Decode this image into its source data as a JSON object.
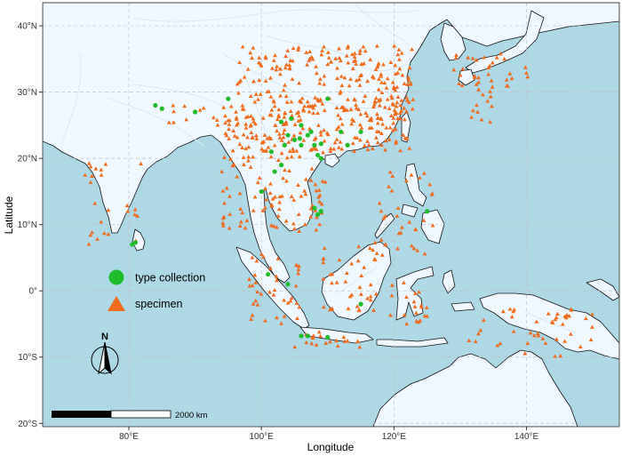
{
  "map": {
    "x_axis": {
      "title": "Longitude",
      "range": [
        67,
        154
      ],
      "ticks": [
        {
          "value": 80,
          "label": "80°E"
        },
        {
          "value": 100,
          "label": "100°E"
        },
        {
          "value": 120,
          "label": "120°E"
        },
        {
          "value": 140,
          "label": "140°E"
        }
      ]
    },
    "y_axis": {
      "title": "Latitude",
      "range": [
        -20.5,
        43.5
      ],
      "ticks": [
        {
          "value": 40,
          "label": "40°N"
        },
        {
          "value": 30,
          "label": "30°N"
        },
        {
          "value": 20,
          "label": "20°N"
        },
        {
          "value": 10,
          "label": "10°N"
        },
        {
          "value": 0,
          "label": "0°"
        },
        {
          "value": -10,
          "label": "10°S"
        },
        {
          "value": -20,
          "label": "20°S"
        }
      ]
    },
    "grid": true,
    "colors": {
      "sea": "#add8e6",
      "land": "#f0f8ff",
      "coast": "#111111",
      "river": "#d6e9f6",
      "grid": "#c0c0c0",
      "specimen": "#f26b1d",
      "type_collection": "#1fbd2a"
    },
    "legend": {
      "placement": "left-middle",
      "items": [
        {
          "key": "type_collection",
          "label": "type collection",
          "shape": "circle"
        },
        {
          "key": "specimen",
          "label": "specimen",
          "shape": "triangle"
        }
      ]
    },
    "scale_bar": {
      "label": "2000 km"
    },
    "north_arrow": {
      "label": "N",
      "icon": "north-arrow-icon"
    },
    "specimen_clusters": [
      {
        "lon": [
          96,
          123
        ],
        "lat": [
          21,
          37
        ],
        "n": 320
      },
      {
        "lon": [
          94,
          110
        ],
        "lat": [
          9,
          28
        ],
        "n": 150
      },
      {
        "lon": [
          117,
          122
        ],
        "lat": [
          22,
          33
        ],
        "n": 40
      },
      {
        "lon": [
          129,
          141
        ],
        "lat": [
          30.5,
          36
        ],
        "n": 25
      },
      {
        "lon": [
          131,
          135
        ],
        "lat": [
          25,
          35
        ],
        "n": 20
      },
      {
        "lon": [
          98,
          106
        ],
        "lat": [
          -5,
          6
        ],
        "n": 40
      },
      {
        "lon": [
          109,
          118
        ],
        "lat": [
          -3,
          7
        ],
        "n": 40
      },
      {
        "lon": [
          117,
          126
        ],
        "lat": [
          5,
          18
        ],
        "n": 35
      },
      {
        "lon": [
          119,
          125
        ],
        "lat": [
          -5,
          2
        ],
        "n": 20
      },
      {
        "lon": [
          131,
          150
        ],
        "lat": [
          -10,
          -2
        ],
        "n": 45
      },
      {
        "lon": [
          105,
          115
        ],
        "lat": [
          -8.5,
          -6
        ],
        "n": 20
      },
      {
        "lon": [
          73,
          82
        ],
        "lat": [
          7,
          21
        ],
        "n": 25
      },
      {
        "lon": [
          84,
          100
        ],
        "lat": [
          25,
          28
        ],
        "n": 20
      }
    ],
    "type_points": [
      [
        84,
        28
      ],
      [
        85,
        27.5
      ],
      [
        95,
        29
      ],
      [
        90,
        27
      ],
      [
        104,
        23.5
      ],
      [
        105,
        22.8
      ],
      [
        103.5,
        22
      ],
      [
        101.5,
        21
      ],
      [
        108,
        22
      ],
      [
        109,
        22.2
      ],
      [
        110,
        29
      ],
      [
        104.5,
        26
      ],
      [
        106,
        25
      ],
      [
        108,
        12.5
      ],
      [
        109,
        12
      ],
      [
        108.5,
        11.5
      ],
      [
        112,
        24
      ],
      [
        109,
        20
      ],
      [
        107.5,
        24
      ],
      [
        106,
        22
      ],
      [
        102,
        18
      ],
      [
        103,
        19
      ],
      [
        100,
        15
      ],
      [
        101,
        2.5
      ],
      [
        104,
        1
      ],
      [
        106,
        -6.8
      ],
      [
        107,
        -6.8
      ],
      [
        110,
        -7
      ],
      [
        113,
        22
      ],
      [
        115,
        24
      ],
      [
        80.5,
        7
      ],
      [
        81,
        7.3
      ],
      [
        115,
        -2
      ],
      [
        125,
        12
      ],
      [
        103,
        25.5
      ],
      [
        108.5,
        20.5
      ],
      [
        107,
        23.5
      ],
      [
        105.8,
        23
      ]
    ]
  }
}
